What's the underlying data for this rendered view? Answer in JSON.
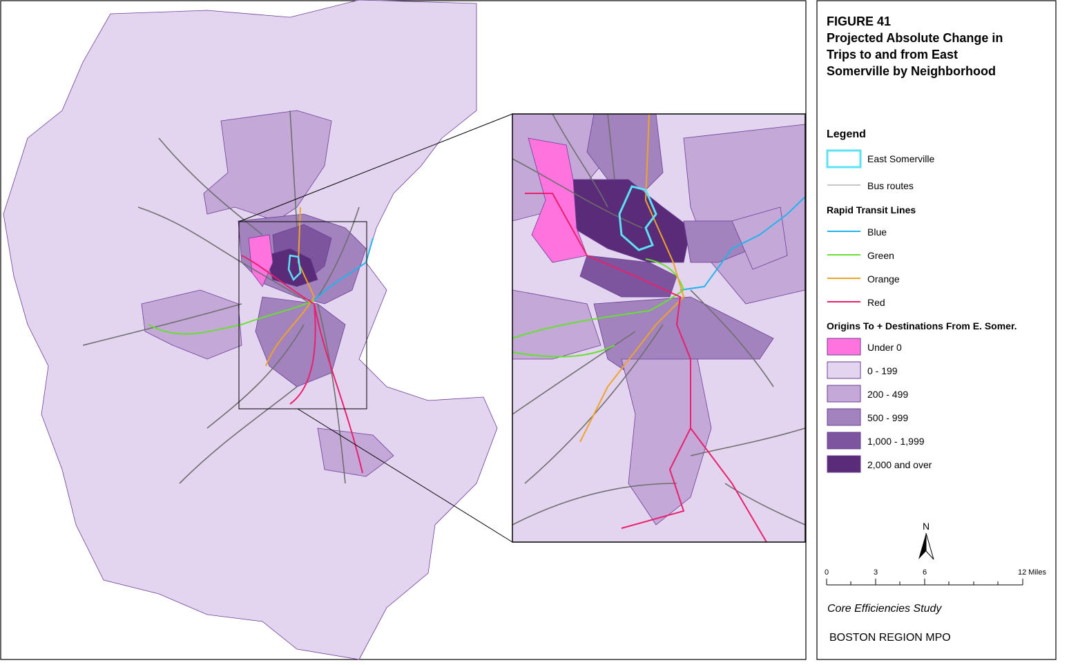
{
  "figure": {
    "number": "FIGURE 41",
    "title_lines": [
      "Projected Absolute Change in",
      "Trips to and from East",
      "Somerville by Neighborhood"
    ]
  },
  "legend": {
    "heading": "Legend",
    "east_somerville": {
      "label": "East Somerville",
      "color": "#5ce1f5"
    },
    "bus_routes": {
      "label": "Bus routes",
      "color": "#8c8c8c"
    },
    "rapid_transit": {
      "heading": "Rapid Transit Lines",
      "lines": [
        {
          "label": "Blue",
          "color": "#1fb4ec"
        },
        {
          "label": "Green",
          "color": "#66e02e"
        },
        {
          "label": "Orange",
          "color": "#eea428"
        },
        {
          "label": "Red",
          "color": "#ea1f6e"
        }
      ]
    },
    "classes": {
      "heading": "Origins To + Destinations From E. Somer.",
      "items": [
        {
          "label": "Under 0",
          "color": "#ff73df"
        },
        {
          "label": "0 - 199",
          "color": "#e3d5ef"
        },
        {
          "label": "200 - 499",
          "color": "#c4a8d8"
        },
        {
          "label": "500 - 999",
          "color": "#a283be"
        },
        {
          "label": "1,000 - 1,999",
          "color": "#7c559e"
        },
        {
          "label": "2,000 and over",
          "color": "#5a2b78"
        }
      ]
    }
  },
  "north_arrow": "N",
  "scale_bar": {
    "labels": [
      "0",
      "3",
      "6",
      "12 Miles"
    ]
  },
  "footer": {
    "study": "Core Efficiencies Study",
    "agency": "BOSTON REGION MPO"
  }
}
